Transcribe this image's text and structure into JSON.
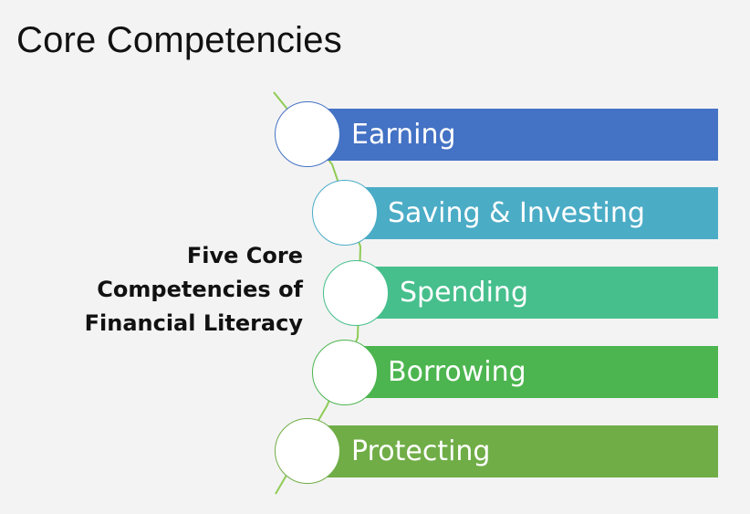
{
  "slide": {
    "title": "Core Competencies",
    "caption": [
      "Five Core",
      "Competencies of",
      "Financial Literacy"
    ]
  },
  "items": [
    {
      "label": "Earning",
      "color": "#4472c4"
    },
    {
      "label": "Saving & Investing",
      "color": "#4bacc6"
    },
    {
      "label": "Spending",
      "color": "#46bf8c"
    },
    {
      "label": "Borrowing",
      "color": "#4cb54f"
    },
    {
      "label": "Protecting",
      "color": "#70ad47"
    }
  ],
  "colors": {
    "background": "#f3f3f3",
    "spine": "#8fcc55",
    "text": "#111111"
  }
}
